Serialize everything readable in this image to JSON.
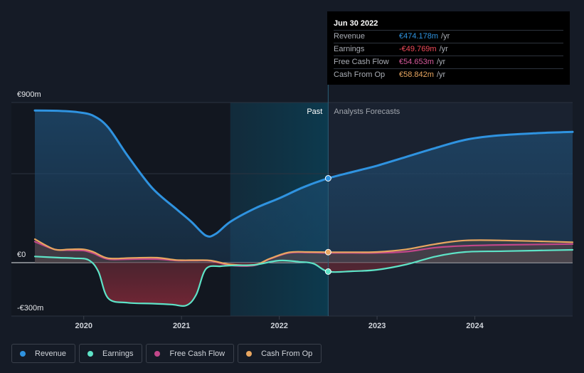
{
  "chart_data": {
    "type": "line",
    "y_axis": {
      "min": -300,
      "max": 900,
      "labels": [
        {
          "value": 900,
          "text": "€900m"
        },
        {
          "value": 0,
          "text": "€0"
        },
        {
          "value": -300,
          "text": "-€300m"
        }
      ],
      "gridlines": [
        900,
        500,
        0
      ]
    },
    "x_axis": {
      "range": [
        2019.5,
        2025.0
      ],
      "ticks": [
        {
          "value": 2020.0,
          "label": "2020"
        },
        {
          "value": 2021.0,
          "label": "2021"
        },
        {
          "value": 2022.0,
          "label": "2022"
        },
        {
          "value": 2023.0,
          "label": "2023"
        },
        {
          "value": 2024.0,
          "label": "2024"
        }
      ]
    },
    "divider_date": 2022.5,
    "highlight_start": 2021.5,
    "region_labels": {
      "past": "Past",
      "forecast": "Analysts Forecasts"
    },
    "series": [
      {
        "name": "Revenue",
        "color": "#2f93e0",
        "points": [
          [
            2019.5,
            855
          ],
          [
            2019.75,
            853
          ],
          [
            2019.95,
            845
          ],
          [
            2020.1,
            825
          ],
          [
            2020.25,
            760
          ],
          [
            2020.45,
            600
          ],
          [
            2020.7,
            420
          ],
          [
            2020.95,
            300
          ],
          [
            2021.1,
            230
          ],
          [
            2021.25,
            152
          ],
          [
            2021.35,
            162
          ],
          [
            2021.5,
            230
          ],
          [
            2021.75,
            305
          ],
          [
            2022.0,
            362
          ],
          [
            2022.25,
            425
          ],
          [
            2022.5,
            474
          ],
          [
            2022.75,
            510
          ],
          [
            2023.0,
            545
          ],
          [
            2023.3,
            595
          ],
          [
            2023.6,
            645
          ],
          [
            2023.9,
            690
          ],
          [
            2024.2,
            713
          ],
          [
            2024.6,
            727
          ],
          [
            2025.0,
            735
          ]
        ]
      },
      {
        "name": "Earnings",
        "color": "#5ee3c7",
        "points": [
          [
            2019.5,
            35
          ],
          [
            2019.75,
            28
          ],
          [
            2019.9,
            25
          ],
          [
            2020.05,
            15
          ],
          [
            2020.15,
            -50
          ],
          [
            2020.25,
            -200
          ],
          [
            2020.45,
            -225
          ],
          [
            2020.7,
            -230
          ],
          [
            2020.9,
            -235
          ],
          [
            2021.05,
            -240
          ],
          [
            2021.15,
            -180
          ],
          [
            2021.25,
            -35
          ],
          [
            2021.4,
            -20
          ],
          [
            2021.55,
            -15
          ],
          [
            2021.75,
            -12
          ],
          [
            2022.0,
            12
          ],
          [
            2022.2,
            5
          ],
          [
            2022.35,
            -5
          ],
          [
            2022.5,
            -50
          ],
          [
            2022.75,
            -48
          ],
          [
            2023.0,
            -40
          ],
          [
            2023.3,
            -10
          ],
          [
            2023.6,
            35
          ],
          [
            2023.9,
            60
          ],
          [
            2024.3,
            65
          ],
          [
            2025.0,
            72
          ]
        ]
      },
      {
        "name": "Free Cash Flow",
        "color": "#c2478a",
        "points": [
          [
            2019.5,
            118
          ],
          [
            2019.7,
            75
          ],
          [
            2019.85,
            70
          ],
          [
            2020.0,
            68
          ],
          [
            2020.1,
            52
          ],
          [
            2020.25,
            20
          ],
          [
            2020.5,
            20
          ],
          [
            2020.75,
            20
          ],
          [
            2020.95,
            12
          ],
          [
            2021.15,
            12
          ],
          [
            2021.3,
            10
          ],
          [
            2021.5,
            -15
          ],
          [
            2021.75,
            -15
          ],
          [
            2021.9,
            20
          ],
          [
            2022.1,
            55
          ],
          [
            2022.3,
            57
          ],
          [
            2022.5,
            55
          ],
          [
            2022.75,
            55
          ],
          [
            2023.0,
            55
          ],
          [
            2023.3,
            62
          ],
          [
            2023.6,
            85
          ],
          [
            2023.9,
            95
          ],
          [
            2024.3,
            100
          ],
          [
            2025.0,
            105
          ]
        ]
      },
      {
        "name": "Cash From Op",
        "color": "#e8a660",
        "points": [
          [
            2019.5,
            132
          ],
          [
            2019.7,
            75
          ],
          [
            2019.85,
            75
          ],
          [
            2020.0,
            75
          ],
          [
            2020.1,
            60
          ],
          [
            2020.25,
            25
          ],
          [
            2020.5,
            27
          ],
          [
            2020.75,
            28
          ],
          [
            2020.95,
            15
          ],
          [
            2021.15,
            14
          ],
          [
            2021.3,
            12
          ],
          [
            2021.5,
            -10
          ],
          [
            2021.75,
            -12
          ],
          [
            2021.9,
            22
          ],
          [
            2022.1,
            58
          ],
          [
            2022.3,
            60
          ],
          [
            2022.5,
            59
          ],
          [
            2022.75,
            59
          ],
          [
            2023.0,
            60
          ],
          [
            2023.3,
            75
          ],
          [
            2023.6,
            105
          ],
          [
            2023.9,
            125
          ],
          [
            2024.3,
            125
          ],
          [
            2025.0,
            115
          ]
        ]
      }
    ]
  },
  "tooltip": {
    "date": "Jun 30 2022",
    "rows": [
      {
        "label": "Revenue",
        "value": "€474.178m",
        "unit": "/yr",
        "color": "#2f93e0"
      },
      {
        "label": "Earnings",
        "value": "-€49.769m",
        "unit": "/yr",
        "color": "#f24b5a"
      },
      {
        "label": "Free Cash Flow",
        "value": "€54.653m",
        "unit": "/yr",
        "color": "#d75a9c"
      },
      {
        "label": "Cash From Op",
        "value": "€58.842m",
        "unit": "/yr",
        "color": "#e8a660"
      }
    ]
  },
  "legend": [
    {
      "label": "Revenue",
      "color": "#2f93e0"
    },
    {
      "label": "Earnings",
      "color": "#5ee3c7"
    },
    {
      "label": "Free Cash Flow",
      "color": "#c2478a"
    },
    {
      "label": "Cash From Op",
      "color": "#e8a660"
    }
  ]
}
